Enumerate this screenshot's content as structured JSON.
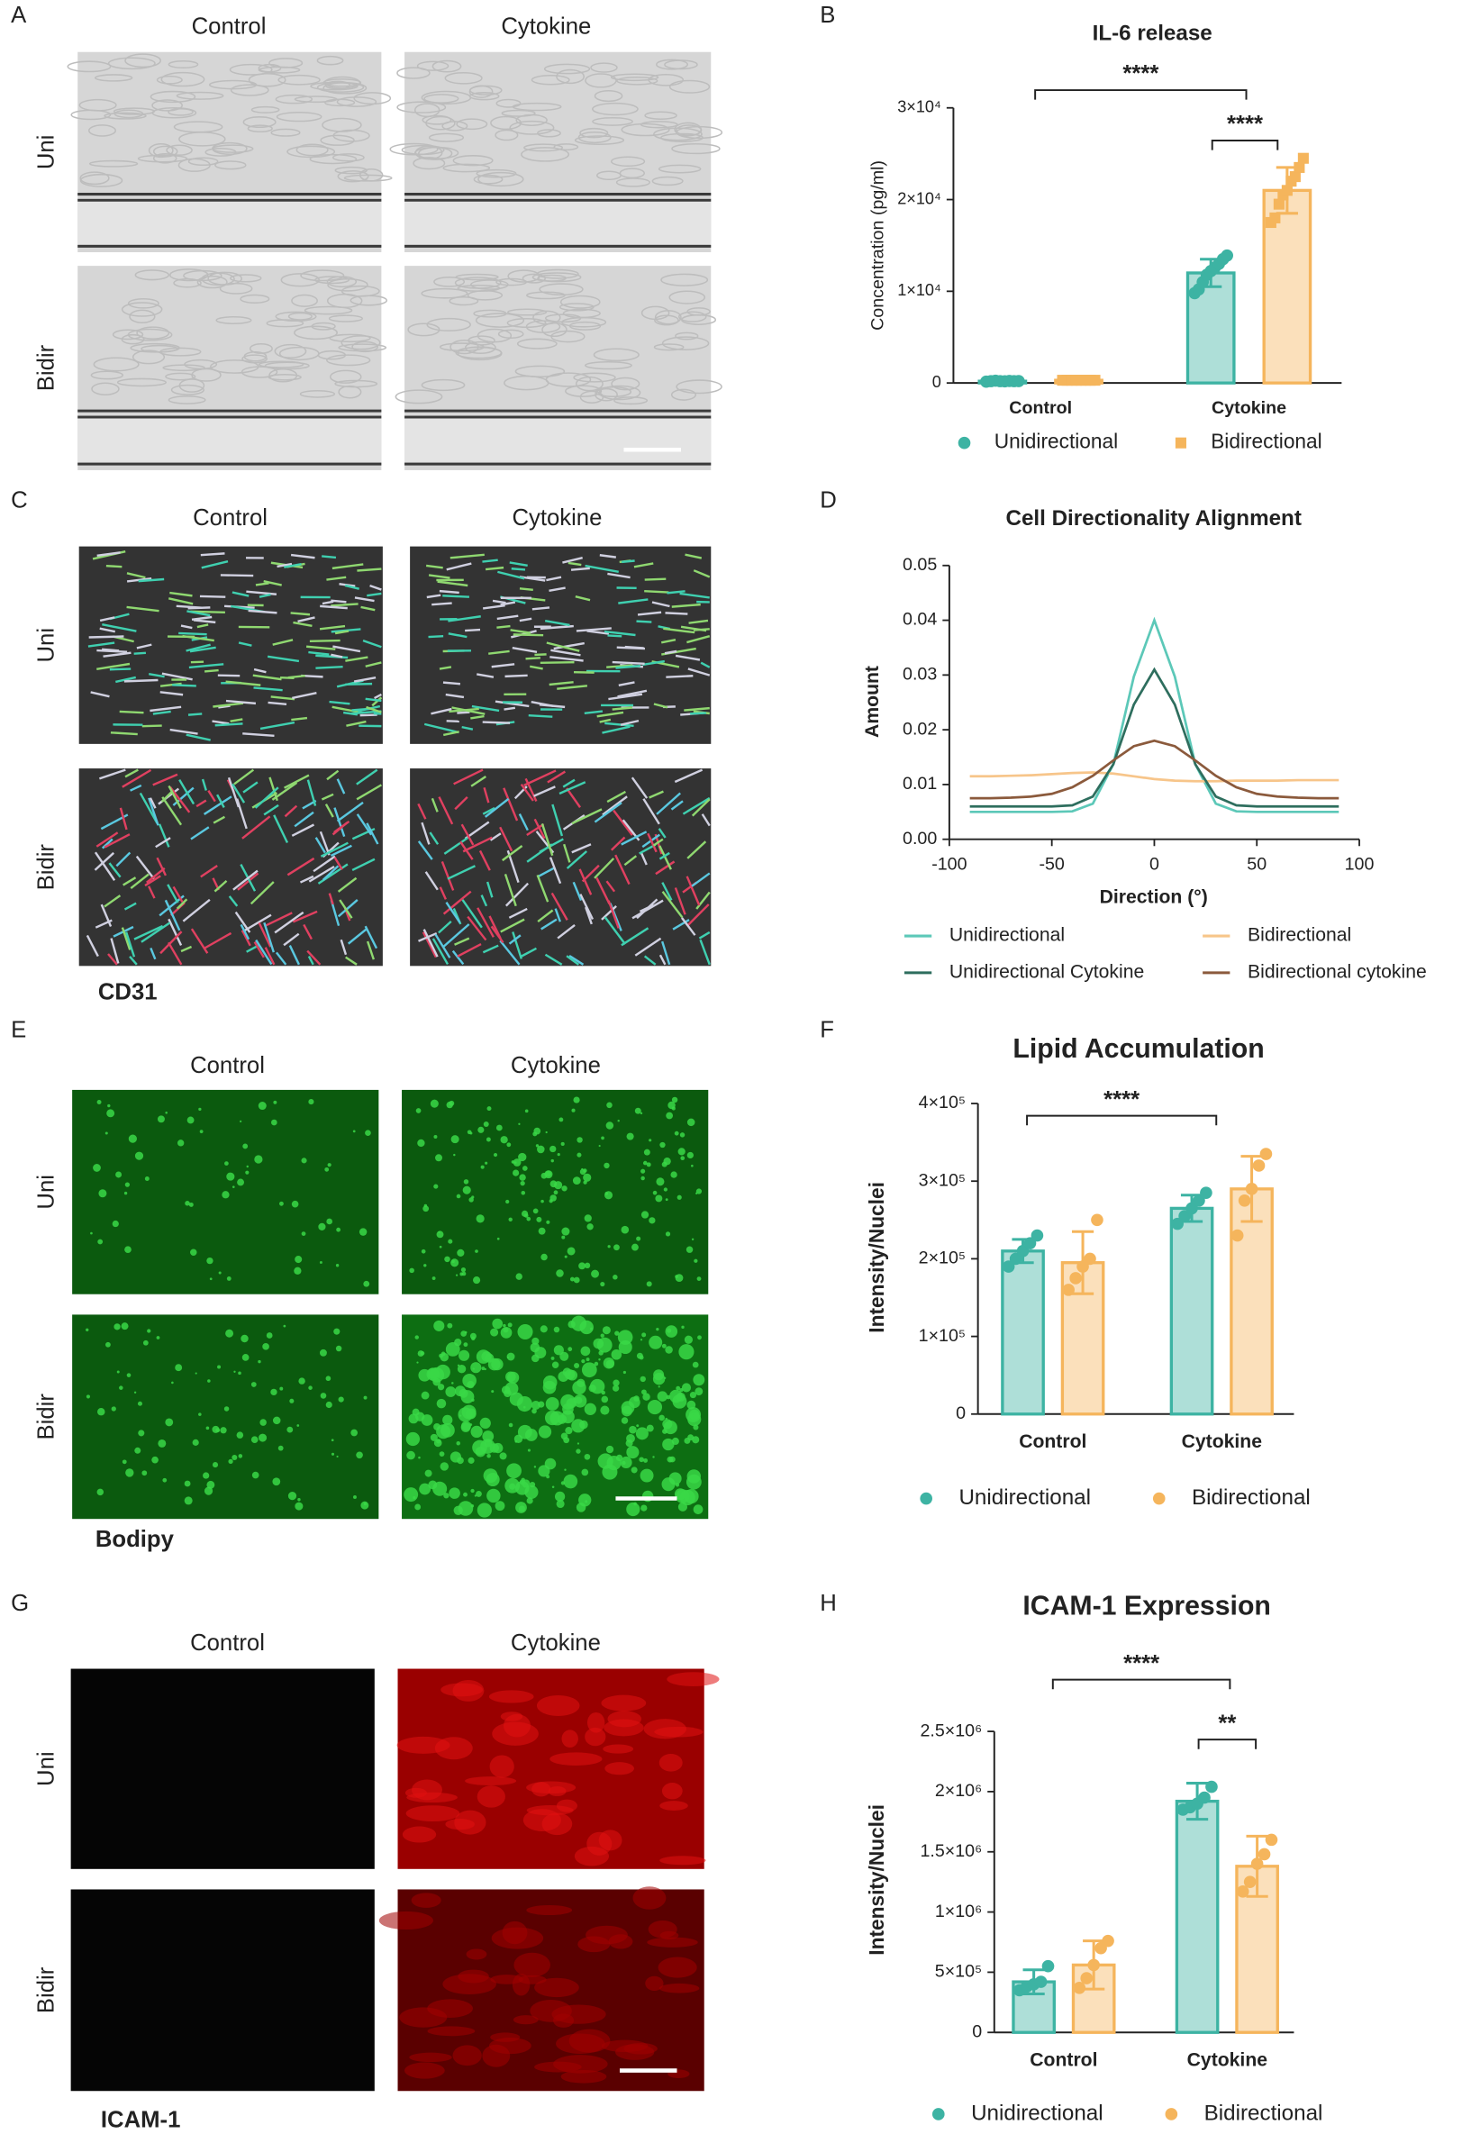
{
  "image_panels": [
    {
      "panel": "A",
      "columns": [
        "Control",
        "Cytokine"
      ],
      "rows": [
        "Uni",
        "Bidir"
      ]
    },
    {
      "panel": "C",
      "columns": [
        "Control",
        "Cytokine"
      ],
      "rows": [
        "Uni",
        "Bidir"
      ],
      "stain": "CD31",
      "stain_color": "#111111"
    },
    {
      "panel": "E",
      "columns": [
        "Control",
        "Cytokine"
      ],
      "rows": [
        "Uni",
        "Bidir"
      ],
      "stain": "Bodipy",
      "stain_color": "#22b14c"
    },
    {
      "panel": "G",
      "columns": [
        "Control",
        "Cytokine"
      ],
      "rows": [
        "Uni",
        "Bidir"
      ],
      "stain": "ICAM-1",
      "stain_color": "#c00000"
    }
  ],
  "chart_data": [
    {
      "type": "bar",
      "panel": "B",
      "title": "IL-6 release",
      "ylabel": "Concentration (pg/ml)",
      "categories": [
        "Control",
        "Cytokine"
      ],
      "ylim": [
        0,
        30000
      ],
      "yticks": [
        0,
        {
          "value": 10000,
          "label": "1×10⁴"
        },
        {
          "value": 20000,
          "label": "2×10⁴"
        },
        {
          "value": 30000,
          "label": "3×10⁴"
        }
      ],
      "series": [
        {
          "name": "Unidirectional",
          "color": "#3db3a3",
          "marker": "circle",
          "values": [
            200,
            12000
          ],
          "errors": [
            50,
            1500
          ],
          "points": [
            [
              150,
              200,
              250,
              200,
              180,
              220,
              200,
              210
            ],
            [
              9800,
              10200,
              11000,
              11800,
              12200,
              12600,
              13000,
              13500,
              13900
            ]
          ]
        },
        {
          "name": "Bidirectional",
          "color": "#f5b55c",
          "marker": "square",
          "values": [
            300,
            21000
          ],
          "errors": [
            60,
            2500
          ],
          "points": [
            [
              300,
              300,
              300,
              300,
              300,
              300,
              300,
              300
            ],
            [
              17500,
              18000,
              19500,
              20500,
              21000,
              22000,
              22500,
              23500,
              24500
            ]
          ]
        }
      ],
      "annotations": [
        "****",
        "****"
      ]
    },
    {
      "type": "line",
      "panel": "D",
      "title": "Cell Directionality Alignment",
      "xlabel": "Direction (°)",
      "ylabel": "Amount",
      "x": [
        -90,
        -80,
        -70,
        -60,
        -50,
        -40,
        -30,
        -20,
        -10,
        0,
        10,
        20,
        30,
        40,
        50,
        60,
        70,
        80,
        90
      ],
      "xlim": [
        -100,
        100
      ],
      "xticks": [
        -100,
        -50,
        0,
        50,
        100
      ],
      "ylim": [
        0,
        0.05
      ],
      "yticks": [
        {
          "value": 0,
          "label": "0.00"
        },
        0.01,
        0.02,
        0.03,
        0.04,
        0.05
      ],
      "series": [
        {
          "name": "Unidirectional",
          "color": "#5cc8b8",
          "values": [
            0.005,
            0.005,
            0.005,
            0.005,
            0.005,
            0.0051,
            0.0065,
            0.0137,
            0.0297,
            0.04,
            0.0297,
            0.0137,
            0.0065,
            0.0051,
            0.005,
            0.005,
            0.005,
            0.005,
            0.005
          ]
        },
        {
          "name": "Bidirectional",
          "color": "#f7c58a",
          "values": [
            0.0115,
            0.0115,
            0.0116,
            0.0117,
            0.0119,
            0.0121,
            0.0122,
            0.012,
            0.0115,
            0.011,
            0.0107,
            0.0106,
            0.0106,
            0.0107,
            0.0107,
            0.0107,
            0.0108,
            0.0108,
            0.0108
          ]
        },
        {
          "name": "Unidirectional Cytokine",
          "color": "#2e6e5e",
          "values": [
            0.006,
            0.006,
            0.006,
            0.006,
            0.006,
            0.0062,
            0.0078,
            0.0137,
            0.0246,
            0.031,
            0.0246,
            0.0137,
            0.0078,
            0.0062,
            0.006,
            0.006,
            0.006,
            0.006,
            0.006
          ]
        },
        {
          "name": "Bidirectional cytokine",
          "color": "#8b5a3c",
          "values": [
            0.0075,
            0.0075,
            0.0076,
            0.0078,
            0.0083,
            0.0095,
            0.0116,
            0.0144,
            0.017,
            0.018,
            0.017,
            0.0144,
            0.0116,
            0.0095,
            0.0083,
            0.0078,
            0.0076,
            0.0075,
            0.0075
          ]
        }
      ]
    },
    {
      "type": "bar",
      "panel": "F",
      "title": "Lipid Accumulation",
      "ylabel": "Intensity/Nuclei",
      "categories": [
        "Control",
        "Cytokine"
      ],
      "ylim": [
        0,
        400000
      ],
      "yticks": [
        0,
        {
          "value": 100000,
          "label": "1×10⁵"
        },
        {
          "value": 200000,
          "label": "2×10⁵"
        },
        {
          "value": 300000,
          "label": "3×10⁵"
        },
        {
          "value": 400000,
          "label": "4×10⁵"
        }
      ],
      "series": [
        {
          "name": "Unidirectional",
          "color": "#3db3a3",
          "marker": "circle",
          "values": [
            210000,
            265000
          ],
          "errors": [
            15000,
            17000
          ],
          "points": [
            [
              190000,
              200000,
              210000,
              220000,
              230000
            ],
            [
              245000,
              255000,
              265000,
              275000,
              285000
            ]
          ]
        },
        {
          "name": "Bidirectional",
          "color": "#f5b55c",
          "marker": "circle",
          "values": [
            195000,
            290000
          ],
          "errors": [
            40000,
            42000
          ],
          "points": [
            [
              160000,
              175000,
              190000,
              200000,
              250000
            ],
            [
              230000,
              275000,
              290000,
              320000,
              335000
            ]
          ]
        }
      ],
      "annotations": [
        "****"
      ]
    },
    {
      "type": "bar",
      "panel": "H",
      "title": "ICAM-1 Expression",
      "ylabel": "Intensity/Nuclei",
      "categories": [
        "Control",
        "Cytokine"
      ],
      "ylim": [
        0,
        2500000
      ],
      "yticks": [
        0,
        {
          "value": 500000,
          "label": "5×10⁵"
        },
        {
          "value": 1000000,
          "label": "1×10⁶"
        },
        {
          "value": 1500000,
          "label": "1.5×10⁶"
        },
        {
          "value": 2000000,
          "label": "2×10⁶"
        },
        {
          "value": 2500000,
          "label": "2.5×10⁶"
        }
      ],
      "series": [
        {
          "name": "Unidirectional",
          "color": "#3db3a3",
          "marker": "circle",
          "values": [
            420000,
            1920000
          ],
          "errors": [
            100000,
            150000
          ],
          "points": [
            [
              350000,
              380000,
              400000,
              420000,
              550000
            ],
            [
              1850000,
              1870000,
              1900000,
              1950000,
              2040000
            ]
          ]
        },
        {
          "name": "Bidirectional",
          "color": "#f5b55c",
          "marker": "circle",
          "values": [
            560000,
            1380000
          ],
          "errors": [
            200000,
            250000
          ],
          "points": [
            [
              370000,
              450000,
              560000,
              700000,
              760000
            ],
            [
              1170000,
              1250000,
              1400000,
              1480000,
              1600000
            ]
          ]
        }
      ],
      "annotations": [
        "****",
        "**"
      ]
    }
  ]
}
